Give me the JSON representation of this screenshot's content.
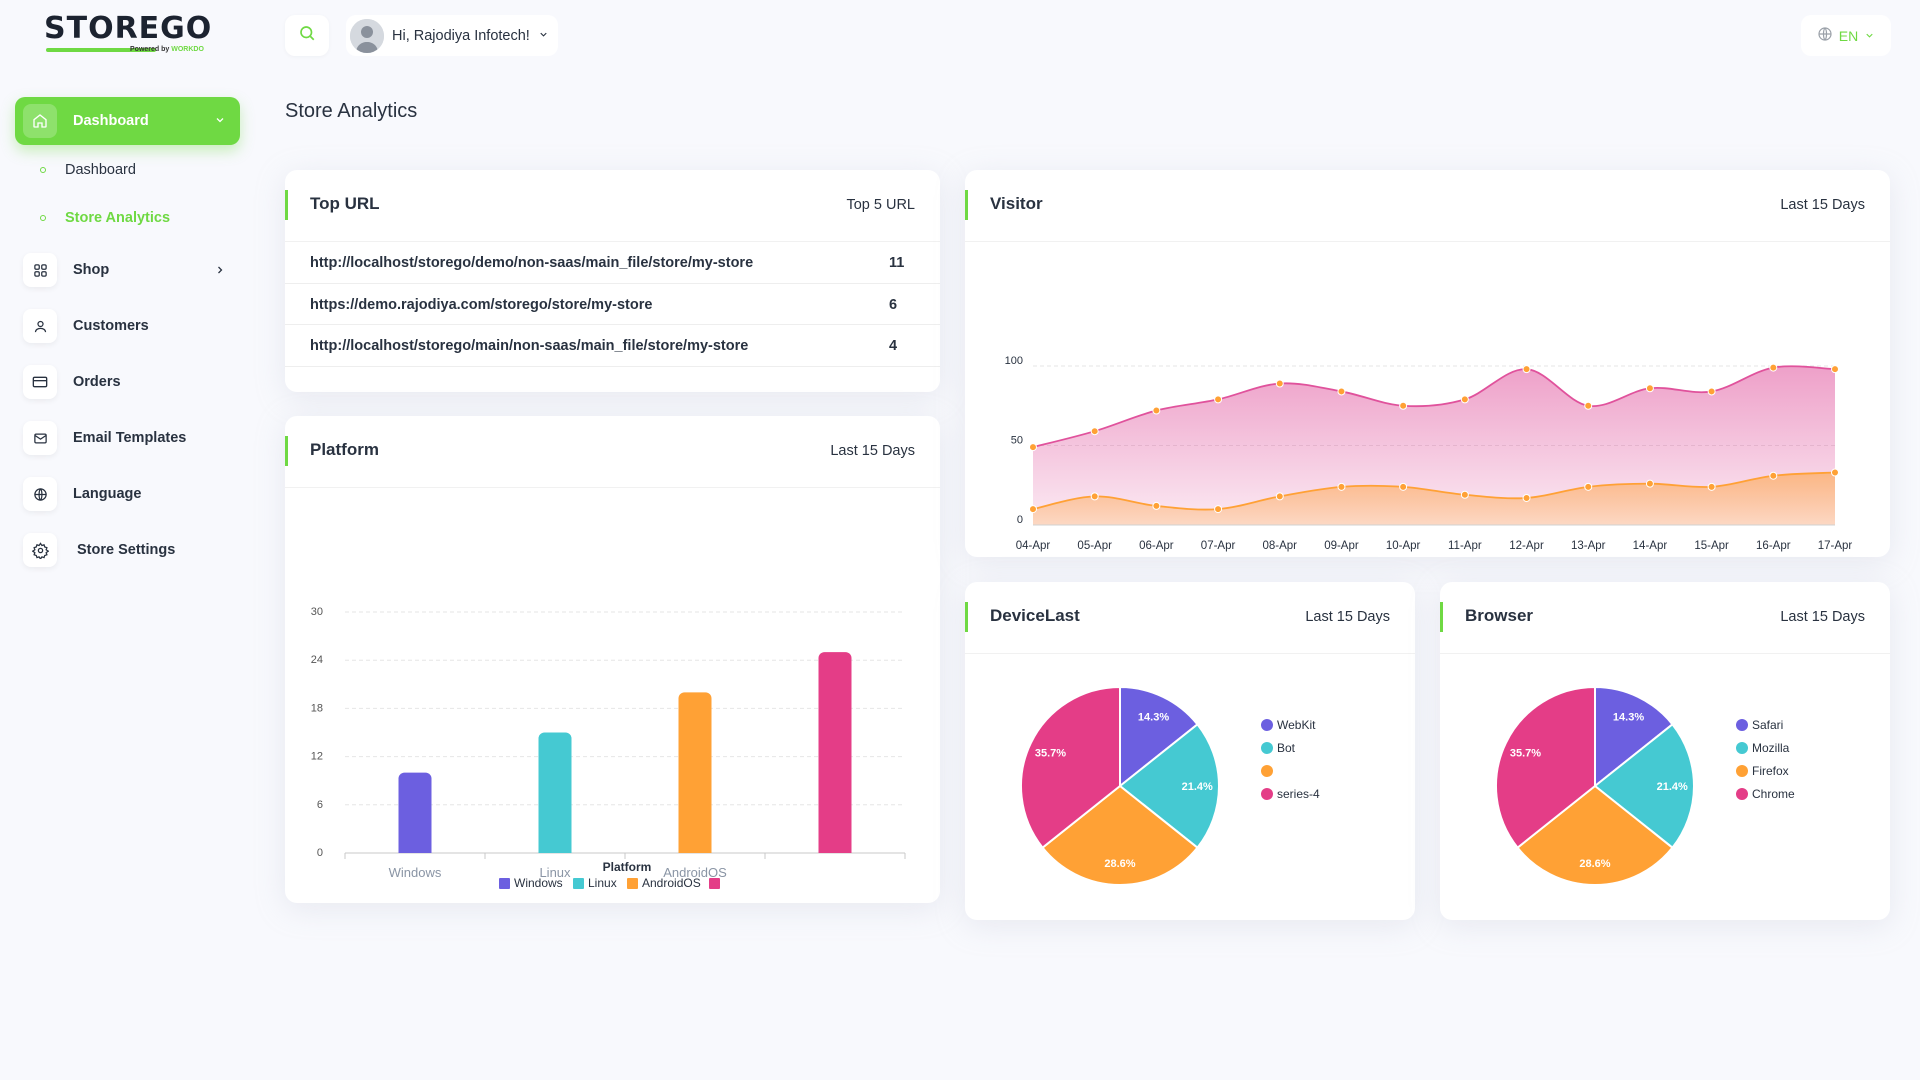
{
  "logo": {
    "word_a": "STORE",
    "word_b": "GO",
    "sub_prefix": "Powered by",
    "sub_brand": "WORKDO"
  },
  "sidebar": {
    "active": {
      "label": "Dashboard"
    },
    "subitems": [
      {
        "label": "Dashboard"
      },
      {
        "label": "Store Analytics"
      }
    ],
    "items": [
      {
        "label": "Shop",
        "icon": "grid-icon"
      },
      {
        "label": "Customers",
        "icon": "user-icon"
      },
      {
        "label": "Orders",
        "icon": "credit-card-icon"
      },
      {
        "label": "Email Templates",
        "icon": "mail-icon"
      },
      {
        "label": "Language",
        "icon": "globe-icon"
      },
      {
        "label": "Store Settings",
        "icon": "settings-icon"
      }
    ]
  },
  "header": {
    "greeting": "Hi, Rajodiya Infotech!",
    "lang": "EN"
  },
  "page": {
    "title": "Store Analytics"
  },
  "top_url": {
    "title": "Top URL",
    "right": "Top 5 URL",
    "rows": [
      {
        "url": "http://localhost/storego/demo/non-saas/main_file/store/my-store",
        "count": "11"
      },
      {
        "url": "https://demo.rajodiya.com/storego/store/my-store",
        "count": "6"
      },
      {
        "url": "http://localhost/storego/main/non-saas/main_file/store/my-store",
        "count": "4"
      }
    ]
  },
  "platform": {
    "title": "Platform",
    "right": "Last 15 Days"
  },
  "visitor": {
    "title": "Visitor",
    "right": "Last 15 Days"
  },
  "device": {
    "title": "DeviceLast",
    "right": "Last 15 Days"
  },
  "browser": {
    "title": "Browser",
    "right": "Last 15 Days"
  },
  "chart_data": [
    {
      "id": "platform",
      "type": "bar",
      "categories": [
        "Windows",
        "Linux",
        "AndroidOS",
        ""
      ],
      "values": [
        10,
        15,
        20,
        25
      ],
      "colors": [
        "#6c5fe0",
        "#45c9d2",
        "#ffa135",
        "#e43d87"
      ],
      "legend": [
        "Windows",
        "Linux",
        "AndroidOS",
        ""
      ],
      "xlabel": "Platform",
      "ylim": [
        0,
        30
      ],
      "yticks": [
        "0",
        "6",
        "12",
        "18",
        "24",
        "30"
      ]
    },
    {
      "id": "visitor",
      "type": "area",
      "x": [
        "04-Apr",
        "05-Apr",
        "06-Apr",
        "07-Apr",
        "08-Apr",
        "09-Apr",
        "10-Apr",
        "11-Apr",
        "12-Apr",
        "13-Apr",
        "14-Apr",
        "15-Apr",
        "16-Apr",
        "17-Apr"
      ],
      "series": [
        {
          "values": [
            49,
            59,
            72,
            79,
            89,
            84,
            75,
            79,
            98,
            75,
            86,
            84,
            99,
            98
          ],
          "color": "#e0529c"
        },
        {
          "values": [
            10,
            18,
            12,
            10,
            18,
            24,
            24,
            19,
            17,
            24,
            26,
            24,
            31,
            33
          ],
          "color": "#ffa135"
        }
      ],
      "xlabel": "Last 15 days",
      "ylim": [
        0,
        100
      ],
      "yticks": [
        "0",
        "50",
        "100"
      ]
    },
    {
      "id": "device",
      "type": "pie",
      "labels": [
        "WebKit",
        "Bot",
        "",
        "series-4"
      ],
      "values": [
        14.3,
        21.4,
        28.6,
        35.7
      ],
      "value_labels": [
        "14.3%",
        "21.4%",
        "28.6%",
        "35.7%"
      ],
      "colors": [
        "#6c5fe0",
        "#45c9d2",
        "#ffa135",
        "#e43d87"
      ]
    },
    {
      "id": "browser",
      "type": "pie",
      "labels": [
        "Safari",
        "Mozilla",
        "Firefox",
        "Chrome"
      ],
      "values": [
        14.3,
        21.4,
        28.6,
        35.7
      ],
      "value_labels": [
        "14.3%",
        "21.4%",
        "28.6%",
        "35.7%"
      ],
      "colors": [
        "#6c5fe0",
        "#45c9d2",
        "#ffa135",
        "#e43d87"
      ]
    }
  ]
}
